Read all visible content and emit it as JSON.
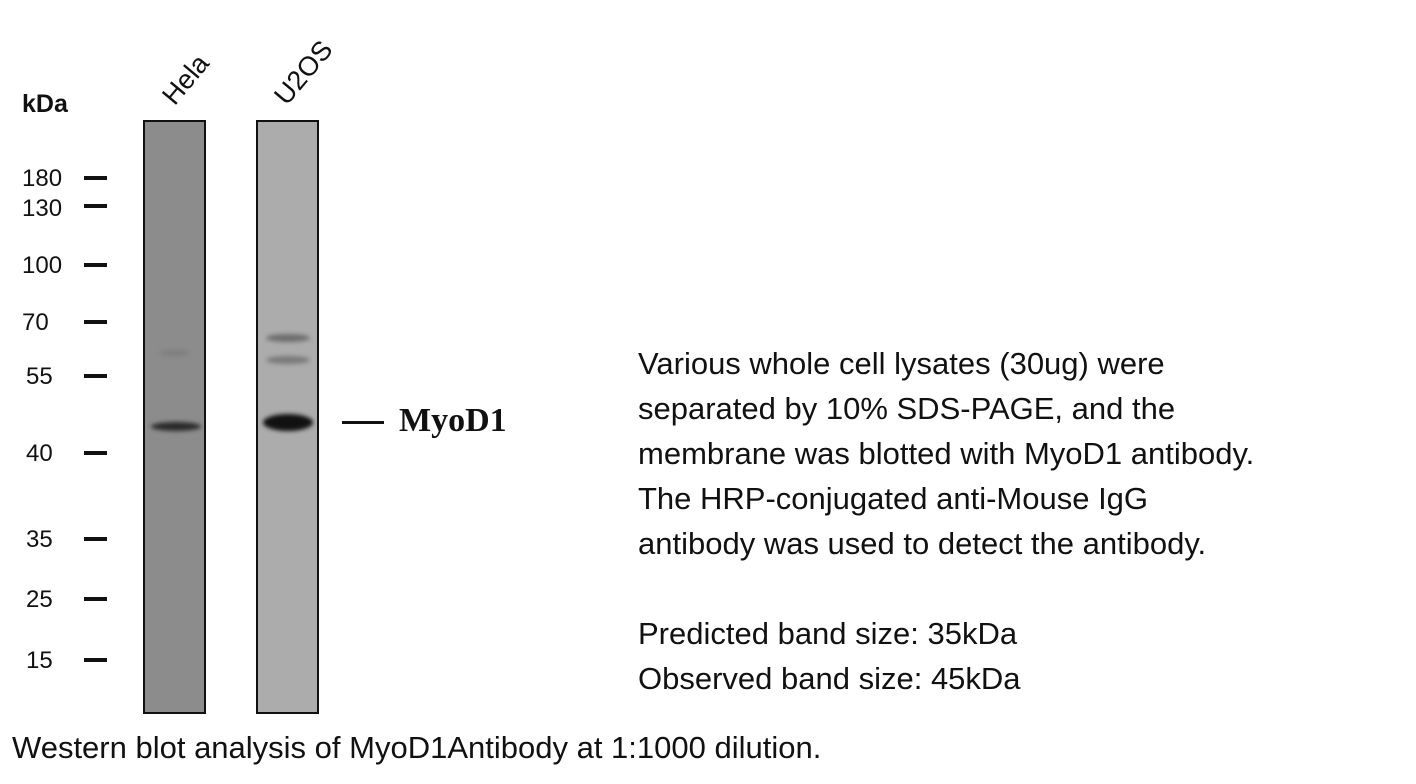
{
  "unit_label": "kDa",
  "lanes": [
    {
      "label": "Hela",
      "background": "#8c8c8c"
    },
    {
      "label": "U2OS",
      "background": "#acacac"
    }
  ],
  "markers": [
    "180",
    "130",
    "100",
    "70",
    "55",
    "40",
    "35",
    "25",
    "15"
  ],
  "target": {
    "label": "MyoD1"
  },
  "description": [
    "Various whole cell lysates (30ug) were",
    "separated by 10% SDS-PAGE, and the",
    "membrane was blotted with MyoD1 antibody.",
    "The HRP-conjugated anti-Mouse IgG",
    "antibody was used to detect the antibody."
  ],
  "band_sizes": {
    "predicted": "Predicted band size: 35kDa",
    "observed": "Observed band size: 45kDa"
  },
  "caption": "Western blot analysis of MyoD1Antibody at 1:1000 dilution."
}
